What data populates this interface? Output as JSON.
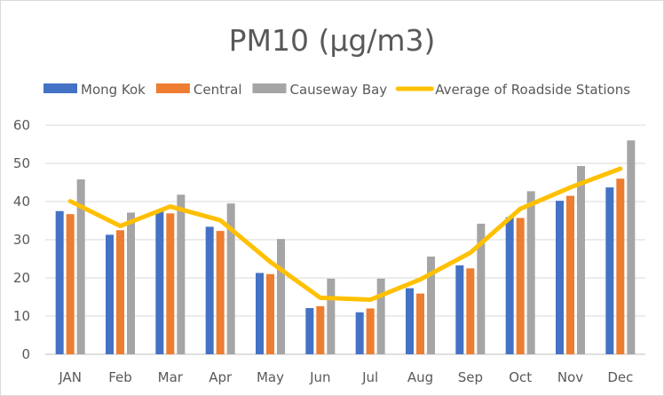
{
  "chart_data": {
    "type": "bar",
    "title": "PM10 (µg/m3)",
    "categories": [
      "JAN",
      "Feb",
      "Mar",
      "Apr",
      "May",
      "Jun",
      "Jul",
      "Aug",
      "Sep",
      "Oct",
      "Nov",
      "Dec"
    ],
    "series": [
      {
        "name": "Mong Kok",
        "type": "bar",
        "color": "#4472c4",
        "values": [
          37.5,
          31.3,
          37.4,
          33.4,
          21.3,
          12.1,
          11.0,
          17.3,
          23.3,
          35.9,
          40.2,
          43.7
        ]
      },
      {
        "name": "Central",
        "type": "bar",
        "color": "#ed7d31",
        "values": [
          36.7,
          32.5,
          36.9,
          32.3,
          21.0,
          12.6,
          12.0,
          15.9,
          22.5,
          35.7,
          41.5,
          46.0
        ]
      },
      {
        "name": "Causeway Bay",
        "type": "bar",
        "color": "#a5a5a5",
        "values": [
          45.8,
          37.1,
          41.8,
          39.5,
          30.2,
          19.8,
          19.8,
          25.6,
          34.2,
          42.7,
          49.3,
          56.0
        ]
      },
      {
        "name": "Average of Roadside Stations",
        "type": "line",
        "color": "#ffc000",
        "values": [
          40.1,
          33.6,
          38.7,
          35.1,
          24.2,
          14.8,
          14.3,
          19.6,
          26.6,
          38.1,
          43.7,
          48.6
        ]
      }
    ],
    "y_ticks": [
      "0",
      "10",
      "20",
      "30",
      "40",
      "50",
      "60"
    ],
    "ylim": [
      0,
      60
    ],
    "xlabel": "",
    "ylabel": "",
    "grid": true,
    "legend_position": "top"
  }
}
